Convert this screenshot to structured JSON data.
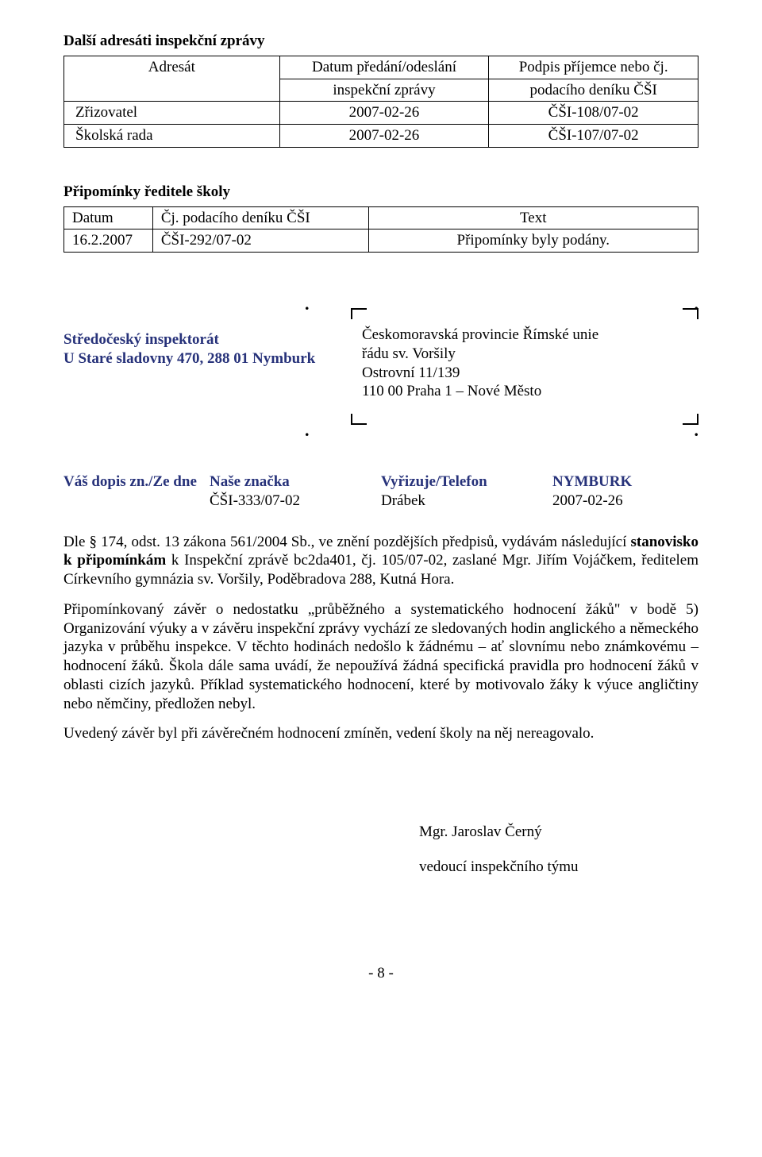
{
  "colors": {
    "text": "#000000",
    "accent_blue": "#27327a",
    "border": "#000000",
    "background": "#ffffff"
  },
  "section1": {
    "heading": "Další adresáti inspekční zprávy",
    "headers": {
      "addr": "Adresát",
      "date_l1": "Datum předání/odeslání",
      "date_l2": "inspekční zprávy",
      "sign_l1": "Podpis příjemce nebo čj.",
      "sign_l2": "podacího deníku  ČŠI"
    },
    "rows": [
      {
        "a": "Zřizovatel",
        "b": "2007-02-26",
        "c": "ČŠI-108/07-02"
      },
      {
        "a": "Školská rada",
        "b": "2007-02-26",
        "c": "ČŠI-107/07-02"
      }
    ]
  },
  "section2": {
    "heading": "Připomínky ředitele školy",
    "headers": {
      "date": "Datum",
      "cj": "Čj. podacího deníku ČŠI",
      "text": "Text"
    },
    "row": {
      "date": "16.2.2007",
      "cj": "ČŠI-292/07-02",
      "text": "Připomínky byly podány."
    }
  },
  "letter": {
    "sender_l1": "Středočeský inspektorát",
    "sender_l2": "U Staré sladovny 470, 288 01 Nymburk",
    "recipient_l1": "Českomoravská provincie Římské unie",
    "recipient_l2": "řádu sv. Voršily",
    "recipient_l3": "Ostrovní 11/139",
    "recipient_l4": "110 00 Praha 1 – Nové Město"
  },
  "ref": {
    "labels": {
      "yours": "Váš dopis zn./Ze dne",
      "ours": "Naše značka",
      "handled": "Vyřizuje/Telefon",
      "place": "NYMBURK"
    },
    "values": {
      "ours": "ČŠI-333/07-02",
      "handled": "Drábek",
      "date": "2007-02-26"
    }
  },
  "body": {
    "p1_a": "Dle § 174, odst. 13 zákona 561/2004 Sb., ve znění pozdějších předpisů, vydávám následující ",
    "p1_b_bold": "stanovisko k připomínkám",
    "p1_c": " k Inspekční zprávě bc2da401, čj. 105/07-02, zaslané Mgr. Jiřím Vojáčkem, ředitelem Církevního gymnázia sv. Voršily, Poděbradova 288, Kutná Hora.",
    "p2": "Připomínkovaný závěr o nedostatku „průběžného a systematického hodnocení žáků\" v bodě 5) Organizování výuky a v závěru inspekční zprávy vychází ze sledovaných hodin anglického a německého jazyka v průběhu inspekce. V těchto hodinách nedošlo k žádnému – ať slovnímu nebo známkovému – hodnocení žáků. Škola dále sama uvádí, že nepoužívá žádná specifická pravidla pro hodnocení žáků v oblasti cizích jazyků. Příklad systematického hodnocení, které by motivovalo žáky k výuce angličtiny nebo němčiny, předložen nebyl.",
    "p3": "Uvedený závěr byl při závěrečném hodnocení zmíněn, vedení školy na něj nereagovalo."
  },
  "signature": {
    "name": "Mgr. Jaroslav Černý",
    "role": "vedoucí inspekčního týmu"
  },
  "footer": "- 8 -"
}
